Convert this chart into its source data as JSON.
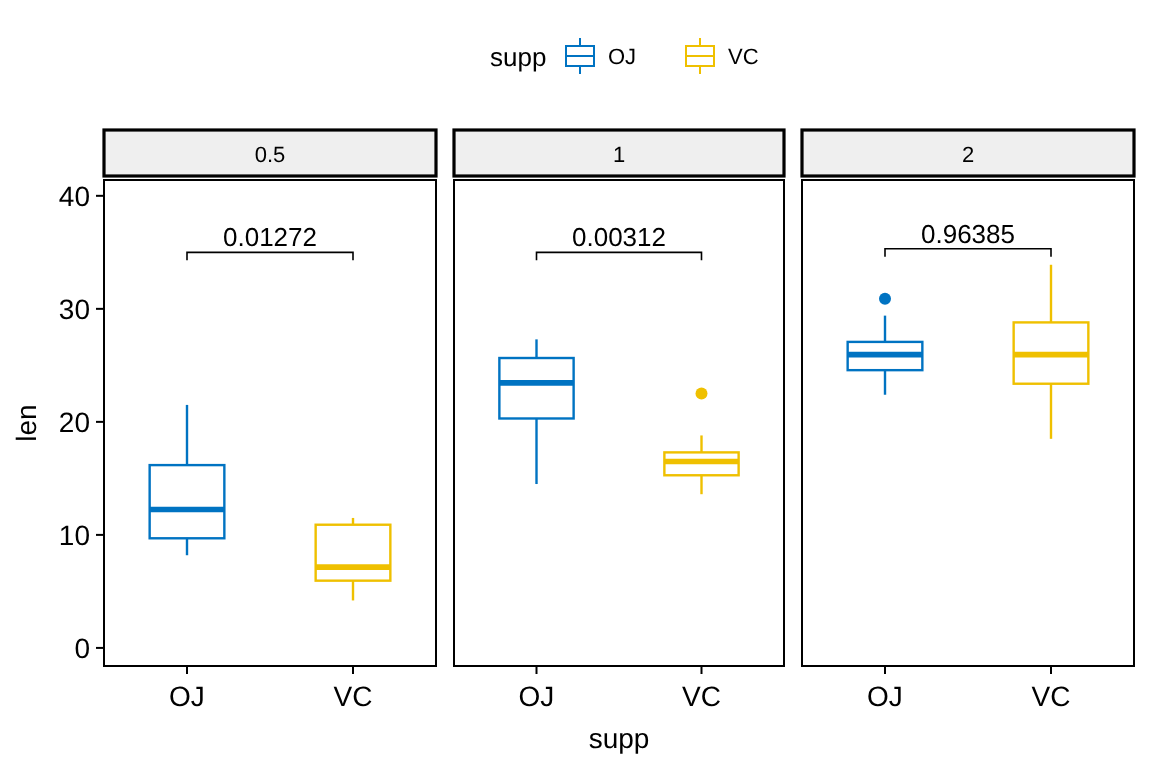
{
  "chart_data": [
    {
      "type": "box",
      "title": "0.5",
      "categories": [
        "OJ",
        "VC"
      ],
      "ylabel": "len",
      "ylim": [
        -1.6,
        41.4
      ],
      "yticks": [
        0,
        10,
        20,
        30,
        40
      ],
      "legend": "top",
      "legend_title": "supp",
      "annotations": [
        "0.01272"
      ],
      "series": [
        {
          "name": "OJ",
          "color": "#0073c2",
          "boxes": [
            {
              "low": 8.2,
              "q1": 9.7,
              "median": 12.25,
              "q3": 16.175,
              "high": 21.5
            },
            null
          ]
        },
        {
          "name": "VC",
          "color": "#efc000",
          "boxes": [
            null,
            {
              "low": 4.2,
              "q1": 5.95,
              "median": 7.15,
              "q3": 10.9,
              "high": 11.5
            }
          ]
        }
      ]
    },
    {
      "type": "box",
      "title": "1",
      "categories": [
        "OJ",
        "VC"
      ],
      "xlabel": "supp",
      "ylim": [
        -1.6,
        41.4
      ],
      "tick_labels": "x",
      "annotations": [
        "0.00312"
      ],
      "series": [
        {
          "color": "#0073c2",
          "boxes": [
            {
              "low": 14.5,
              "q1": 20.3,
              "median": 23.45,
              "q3": 25.65,
              "high": 27.3
            },
            null
          ]
        },
        {
          "color": "#efc000",
          "boxes": [
            null,
            {
              "low": 13.6,
              "q1": 15.275,
              "median": 16.5,
              "q3": 17.3,
              "high": 18.8,
              "outliers": [
                22.5
              ]
            }
          ]
        }
      ]
    },
    {
      "type": "box",
      "title": "2",
      "categories": [
        "OJ",
        "VC"
      ],
      "ylim": [
        -1.6,
        41.4
      ],
      "tick_labels": "x",
      "annotations": [
        "0.96385"
      ],
      "series": [
        {
          "color": "#0073c2",
          "boxes": [
            {
              "low": 22.4,
              "q1": 24.575,
              "median": 25.95,
              "q3": 27.075,
              "high": 29.4,
              "outliers": [
                30.9
              ]
            },
            null
          ]
        },
        {
          "color": "#efc000",
          "boxes": [
            null,
            {
              "low": 18.5,
              "q1": 23.375,
              "median": 25.95,
              "q3": 28.8,
              "high": 33.9
            }
          ]
        }
      ]
    }
  ]
}
